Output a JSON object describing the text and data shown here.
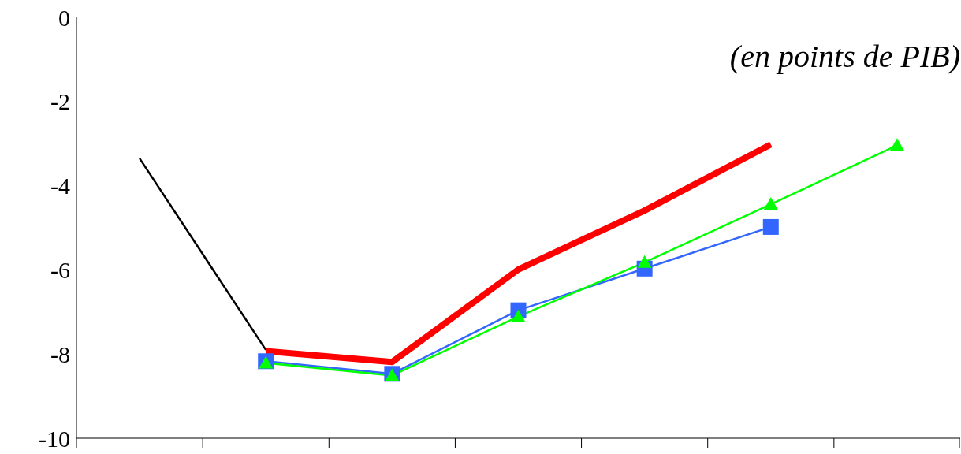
{
  "chart_data": {
    "type": "line",
    "categories": [
      null,
      null,
      null,
      null,
      null,
      null,
      null
    ],
    "series": [
      {
        "color": "#000000",
        "values": [
          -3.35,
          -7.9,
          null,
          null,
          null,
          null,
          null
        ],
        "marker": "none"
      },
      {
        "color": "#ff0000",
        "values": [
          null,
          -7.93,
          -8.19,
          -5.99,
          -4.59,
          -3.02,
          null
        ],
        "marker": "none"
      },
      {
        "color": "#3366ff",
        "values": [
          null,
          -8.17,
          -8.47,
          -6.96,
          -5.97,
          -4.98,
          null
        ],
        "marker": "square"
      },
      {
        "color": "#00ff00",
        "values": [
          null,
          -8.21,
          -8.51,
          -7.11,
          -5.82,
          -4.44,
          -3.04
        ],
        "marker": "triangle"
      }
    ],
    "ylim": [
      -10,
      0
    ],
    "yticks": [
      0,
      -2,
      -4,
      -6,
      -8,
      -10
    ],
    "tick_labels": "y",
    "line_style": "solid",
    "annotations": [
      "(en points de PIB)"
    ]
  }
}
